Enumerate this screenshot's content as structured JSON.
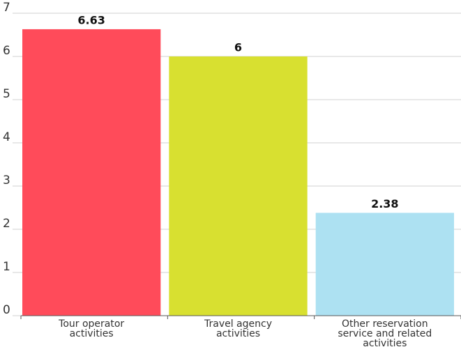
{
  "chart_data": {
    "type": "bar",
    "categories": [
      "Tour operator activities",
      "Travel agency activities",
      "Other reservation service and related activities"
    ],
    "values": [
      6.63,
      6,
      2.38
    ],
    "colors": [
      "#ff4b5a",
      "#d8e030",
      "#ade1f2"
    ],
    "ylim": [
      0,
      7
    ],
    "yticks": [
      0,
      1,
      2,
      3,
      4,
      5,
      6,
      7
    ],
    "grid": true
  }
}
